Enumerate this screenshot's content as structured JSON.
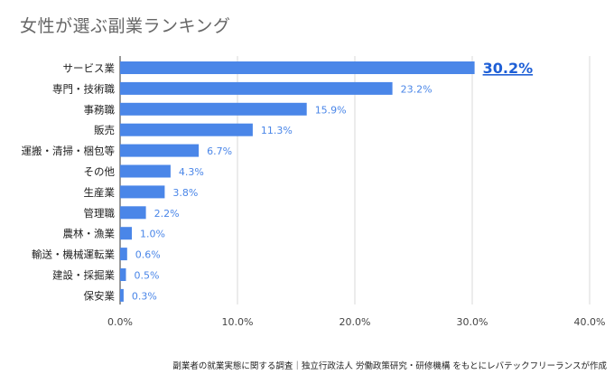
{
  "chart_data": {
    "type": "bar",
    "orientation": "horizontal",
    "title": "女性が選ぶ副業ランキング",
    "categories": [
      "サービス業",
      "専門・技術職",
      "事務職",
      "販売",
      "運搬・清掃・梱包等",
      "その他",
      "生産業",
      "管理職",
      "農林・漁業",
      "輸送・機械運転業",
      "建設・採掘業",
      "保安業"
    ],
    "values": [
      30.2,
      23.2,
      15.9,
      11.3,
      6.7,
      4.3,
      3.8,
      2.2,
      1.0,
      0.6,
      0.5,
      0.3
    ],
    "value_labels": [
      "30.2%",
      "23.2%",
      "15.9%",
      "11.3%",
      "6.7%",
      "4.3%",
      "3.8%",
      "2.2%",
      "1.0%",
      "0.6%",
      "0.5%",
      "0.3%"
    ],
    "xlim": [
      0,
      40
    ],
    "x_ticks": [
      "0.0%",
      "10.0%",
      "20.0%",
      "30.0%",
      "40.0%"
    ],
    "grid": true,
    "bar_color": "#4a86e8",
    "label_color": "#4a86e8",
    "highlight_color": "#1e5fd6",
    "source": "副業者の就業実態に関する調査｜独立行政法人 労働政策研究・研修機構 をもとにレバテックフリーランスが作成"
  }
}
